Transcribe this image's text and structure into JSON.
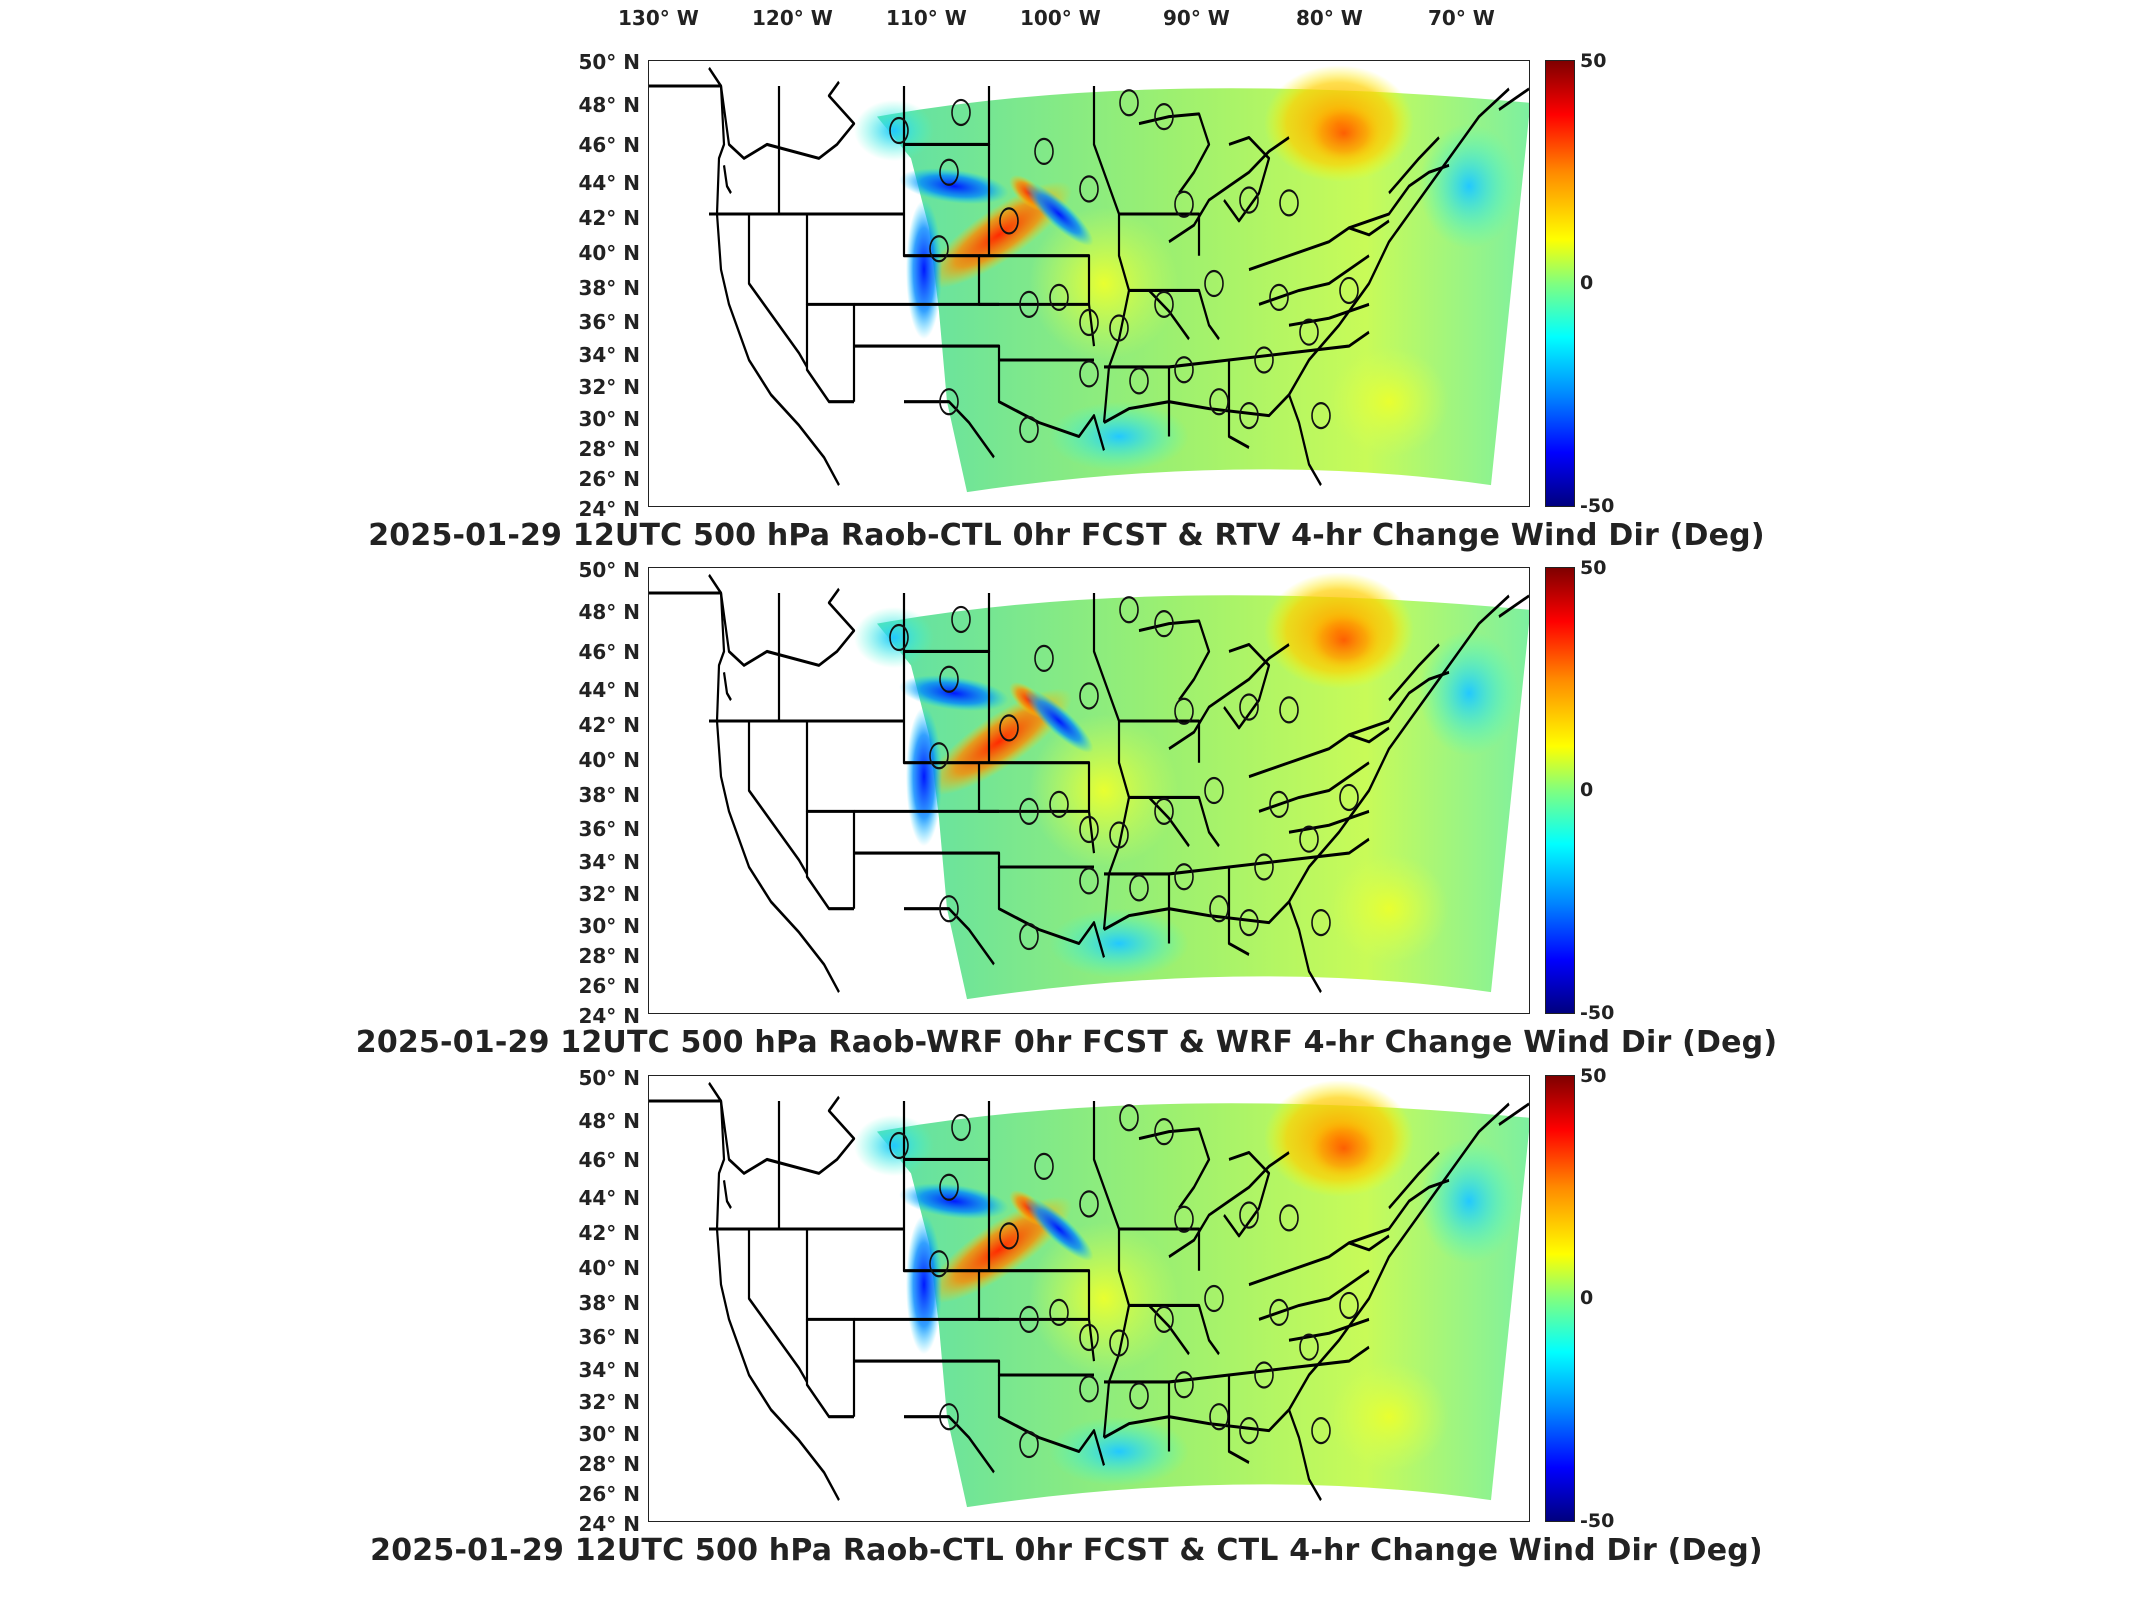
{
  "lon_labels": [
    "130° W",
    "120° W",
    "110° W",
    "100° W",
    "90° W",
    "80° W",
    "70° W"
  ],
  "lat_labels": [
    "50° N",
    "48° N",
    "46° N",
    "44° N",
    "42° N",
    "40° N",
    "38° N",
    "36° N",
    "34° N",
    "32° N",
    "30° N",
    "28° N",
    "26° N",
    "24° N"
  ],
  "colorbar": {
    "max_label": "50",
    "mid_label": "0",
    "min_label": "-50",
    "colormap": [
      "#7f0000",
      "#ff0000",
      "#ff8a00",
      "#ffff00",
      "#80ff7f",
      "#00ffff",
      "#0088ff",
      "#0000ff",
      "#00007f"
    ]
  },
  "panels": [
    {
      "title": "2025-01-29 12UTC 500 hPa Raob-CTL 0hr FCST & RTV 4-hr Change Wind Dir (Deg)"
    },
    {
      "title": "2025-01-29 12UTC 500 hPa Raob-WRF 0hr FCST & WRF 4-hr Change Wind Dir (Deg)"
    },
    {
      "title": "2025-01-29 12UTC 500 hPa Raob-CTL 0hr FCST & CTL 4-hr Change Wind Dir (Deg)"
    }
  ],
  "map_features": {
    "markers": "raob-station-circles",
    "field": "wind-direction-change"
  }
}
